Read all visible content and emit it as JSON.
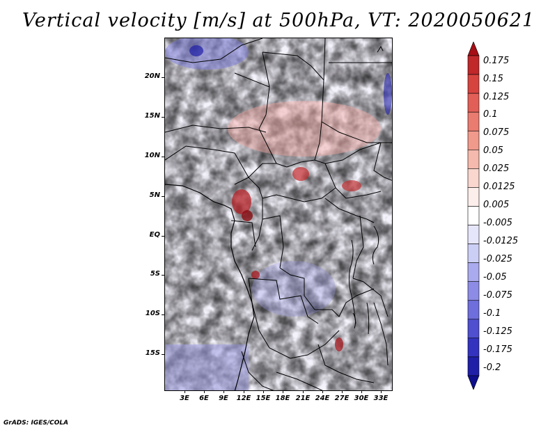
{
  "title": "Vertical velocity [m/s] at 500hPa, VT: 2020050621",
  "footer": "GrADS: IGES/COLA",
  "lat_labels": [
    "20N",
    "15N",
    "10N",
    "5N",
    "EQ",
    "5S",
    "10S",
    "15S"
  ],
  "lon_labels": [
    "3E",
    "6E",
    "9E",
    "12E",
    "15E",
    "18E",
    "21E",
    "24E",
    "27E",
    "30E",
    "33E"
  ],
  "colorbar": {
    "labels": [
      "0.175",
      "0.15",
      "0.125",
      "0.1",
      "0.075",
      "0.05",
      "0.025",
      "0.0125",
      "0.005",
      "-0.005",
      "-0.0125",
      "-0.025",
      "-0.05",
      "-0.075",
      "-0.1",
      "-0.125",
      "-0.175",
      "-0.2"
    ],
    "colors": [
      "#a50f15",
      "#c0282a",
      "#d7443f",
      "#e25f57",
      "#ea7b70",
      "#f09a8c",
      "#f5b9ad",
      "#f9d6ce",
      "#fceeea",
      "#ffffff",
      "#e6e6fb",
      "#cccff5",
      "#aaaaee",
      "#8c8ce6",
      "#6e6edc",
      "#4f4fd0",
      "#3333c0",
      "#1f1fa8",
      "#0f0f8c"
    ]
  }
}
